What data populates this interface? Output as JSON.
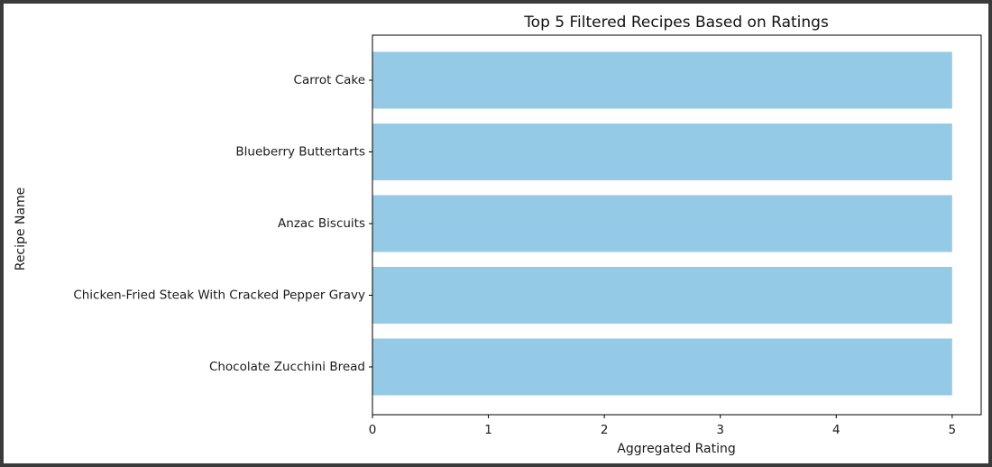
{
  "chart_data": {
    "type": "bar",
    "orientation": "horizontal",
    "title": "Top 5 Filtered Recipes Based on Ratings",
    "xlabel": "Aggregated Rating",
    "ylabel": "Recipe Name",
    "categories": [
      "Carrot Cake",
      "Blueberry Buttertarts",
      "Anzac Biscuits",
      "Chicken-Fried Steak With Cracked Pepper Gravy",
      "Chocolate Zucchini Bread"
    ],
    "values": [
      5,
      5,
      5,
      5,
      5
    ],
    "xlim": [
      0,
      5.25
    ],
    "xticks": [
      "0",
      "1",
      "2",
      "3",
      "4",
      "5"
    ],
    "bar_color": "#95cae6",
    "grid": false,
    "legend": "none"
  }
}
